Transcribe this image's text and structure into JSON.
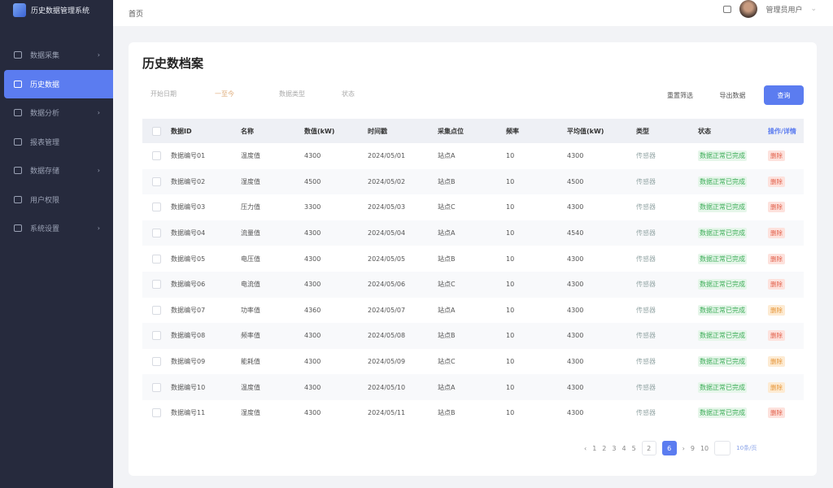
{
  "app": {
    "title": "历史数据管理系统"
  },
  "sidebar": {
    "items": [
      {
        "label": "数据采集",
        "icon": "monitor-icon",
        "chevron": true
      },
      {
        "label": "历史数据",
        "icon": "archive-icon",
        "active": true
      },
      {
        "label": "数据分析",
        "icon": "chart-icon",
        "chevron": true
      },
      {
        "label": "报表管理",
        "icon": "report-icon"
      },
      {
        "label": "数据存储",
        "icon": "database-icon",
        "chevron": true
      },
      {
        "label": "用户权限",
        "icon": "user-icon"
      },
      {
        "label": "系统设置",
        "icon": "settings-icon",
        "chevron": true
      }
    ]
  },
  "header": {
    "breadcrumb": "首页",
    "username": "管理员用户"
  },
  "page": {
    "title": "历史数档案"
  },
  "filters": {
    "date_start": "开始日期",
    "date_sep": "一至今",
    "type": "数据类型",
    "status": "状态"
  },
  "buttons": {
    "reset": "重置筛选",
    "export": "导出数据",
    "query": "查询"
  },
  "table": {
    "headers": [
      "数据ID",
      "名称",
      "数值(kW)",
      "时间戳",
      "采集点位",
      "频率",
      "平均值(kW)",
      "类型",
      "状态",
      "操作/详情"
    ],
    "rows": [
      [
        "数据编号01",
        "温度值",
        "4300",
        "2024/05/01",
        "站点A",
        "10",
        "4300",
        "传感器",
        "数据正常已完成",
        "删除",
        "red"
      ],
      [
        "数据编号02",
        "湿度值",
        "4500",
        "2024/05/02",
        "站点B",
        "10",
        "4500",
        "传感器",
        "数据正常已完成",
        "删除",
        "red"
      ],
      [
        "数据编号03",
        "压力值",
        "3300",
        "2024/05/03",
        "站点C",
        "10",
        "4300",
        "传感器",
        "数据正常已完成",
        "删除",
        "red"
      ],
      [
        "数据编号04",
        "流量值",
        "4300",
        "2024/05/04",
        "站点A",
        "10",
        "4540",
        "传感器",
        "数据正常已完成",
        "删除",
        "red"
      ],
      [
        "数据编号05",
        "电压值",
        "4300",
        "2024/05/05",
        "站点B",
        "10",
        "4300",
        "传感器",
        "数据正常已完成",
        "删除",
        "red"
      ],
      [
        "数据编号06",
        "电流值",
        "4300",
        "2024/05/06",
        "站点C",
        "10",
        "4300",
        "传感器",
        "数据正常已完成",
        "删除",
        "red"
      ],
      [
        "数据编号07",
        "功率值",
        "4360",
        "2024/05/07",
        "站点A",
        "10",
        "4300",
        "传感器",
        "数据正常已完成",
        "删除",
        "orange"
      ],
      [
        "数据编号08",
        "频率值",
        "4300",
        "2024/05/08",
        "站点B",
        "10",
        "4300",
        "传感器",
        "数据正常已完成",
        "删除",
        "red"
      ],
      [
        "数据编号09",
        "能耗值",
        "4300",
        "2024/05/09",
        "站点C",
        "10",
        "4300",
        "传感器",
        "数据正常已完成",
        "删除",
        "orange"
      ],
      [
        "数据编号10",
        "温度值",
        "4300",
        "2024/05/10",
        "站点A",
        "10",
        "4300",
        "传感器",
        "数据正常已完成",
        "删除",
        "orange"
      ],
      [
        "数据编号11",
        "湿度值",
        "4300",
        "2024/05/11",
        "站点B",
        "10",
        "4300",
        "传感器",
        "数据正常已完成",
        "删除",
        "red"
      ]
    ]
  },
  "pagination": {
    "pages": [
      "1",
      "2",
      "3",
      "4",
      "5"
    ],
    "jump_page": "2",
    "current": "6",
    "after": [
      "9",
      "10"
    ],
    "page_size": "10条/页"
  }
}
